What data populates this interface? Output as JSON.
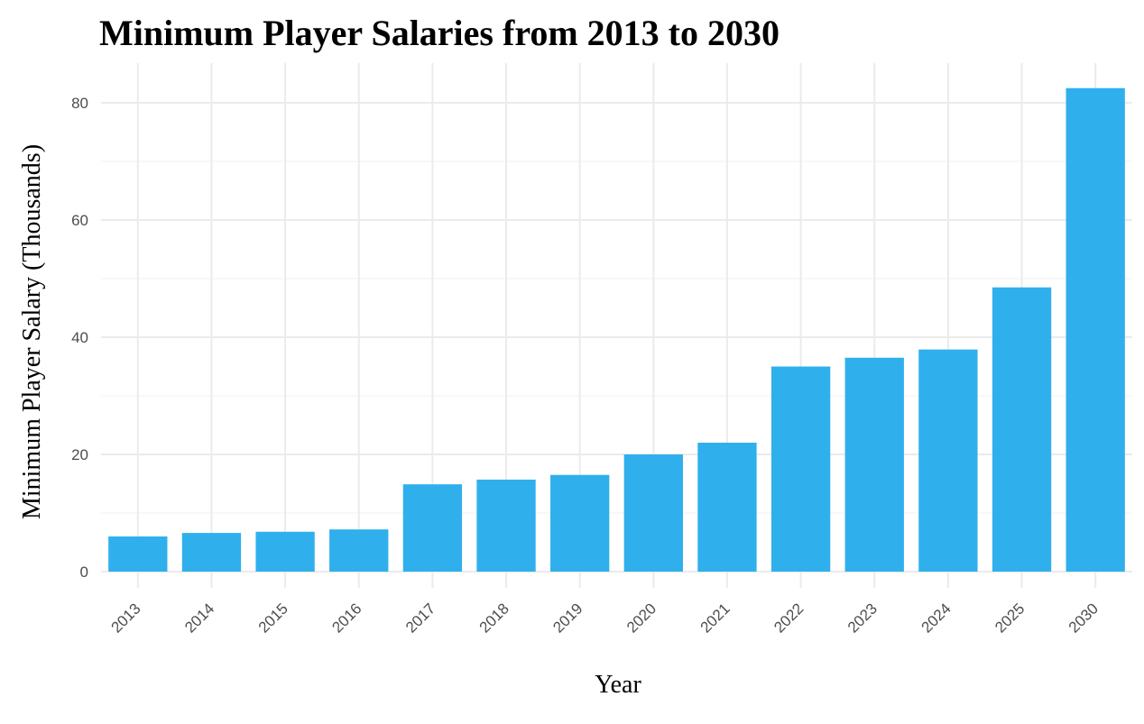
{
  "chart_data": {
    "type": "bar",
    "title": "Minimum Player Salaries from 2013 to 2030",
    "xlabel": "Year",
    "ylabel": "Minimum Player Salary (Thousands)",
    "categories": [
      "2013",
      "2014",
      "2015",
      "2016",
      "2017",
      "2018",
      "2019",
      "2020",
      "2021",
      "2022",
      "2023",
      "2024",
      "2025",
      "2030"
    ],
    "values": [
      6.0,
      6.6,
      6.8,
      7.2,
      14.9,
      15.7,
      16.5,
      20.0,
      22.0,
      35.0,
      36.5,
      37.9,
      48.5,
      82.5
    ],
    "ylim": [
      0,
      84.5
    ],
    "yticks": [
      0,
      20,
      40,
      60,
      80
    ],
    "grid": true,
    "legend": "none",
    "bar_color": "#2fb0ec",
    "grid_color": "#ebebeb",
    "text_color": "#4d4d4d"
  }
}
